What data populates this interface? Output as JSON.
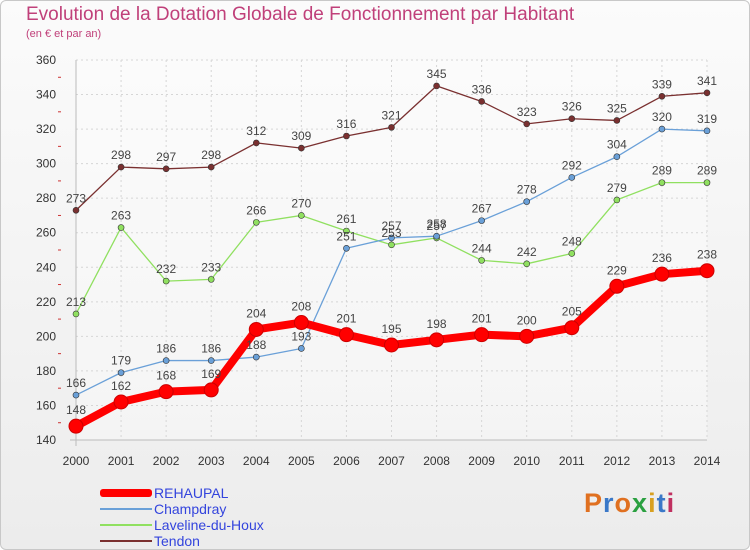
{
  "header": {
    "title": "Evolution de la Dotation Globale de Fonctionnement par Habitant",
    "subtitle": "(en € et par an)"
  },
  "logo": {
    "text": "Proxiti",
    "colors": [
      "#e07020",
      "#3a78c8",
      "#e07020",
      "#2aa040",
      "#d8a020",
      "#3a78c8",
      "#c03060"
    ]
  },
  "chart_data": {
    "type": "line",
    "x": [
      "2000",
      "2001",
      "2002",
      "2003",
      "2004",
      "2005",
      "2006",
      "2007",
      "2008",
      "2009",
      "2010",
      "2011",
      "2012",
      "2013",
      "2014"
    ],
    "ylim": [
      140,
      360
    ],
    "yticks": [
      140,
      160,
      180,
      200,
      220,
      240,
      260,
      280,
      300,
      320,
      340,
      360
    ],
    "grid": true,
    "legend_position": "bottom-left",
    "series": [
      {
        "name": "REHAUPAL",
        "color": "#ff0000",
        "emphasis": true,
        "values": [
          148,
          162,
          168,
          169,
          204,
          208,
          201,
          195,
          198,
          201,
          200,
          205,
          229,
          236,
          238
        ],
        "labels": [
          "148",
          "162",
          "168",
          "169",
          "204",
          "208",
          "201",
          "195",
          "198",
          "201",
          "200",
          "205",
          "229",
          "236",
          "238"
        ]
      },
      {
        "name": "Champdray",
        "color": "#6aa0d8",
        "values": [
          166,
          179,
          186,
          186,
          188,
          193,
          251,
          257,
          258,
          267,
          278,
          292,
          304,
          320,
          319
        ],
        "labels": [
          "166",
          "179",
          "186",
          "186",
          "188",
          "193",
          "251",
          "257",
          "258",
          "267",
          "278",
          "292",
          "304",
          "320",
          "319"
        ]
      },
      {
        "name": "Laveline-du-Houx",
        "color": "#90e060",
        "values": [
          213,
          263,
          232,
          233,
          266,
          270,
          261,
          253,
          257,
          244,
          242,
          248,
          279,
          289,
          289
        ],
        "labels": [
          "213",
          "263",
          "232",
          "233",
          "266",
          "270",
          "261",
          "253",
          "257",
          "244",
          "242",
          "248",
          "279",
          "289",
          "289"
        ]
      },
      {
        "name": "Tendon",
        "color": "#7a3030",
        "values": [
          273,
          298,
          297,
          298,
          312,
          309,
          316,
          321,
          345,
          336,
          323,
          326,
          325,
          339,
          341
        ],
        "labels": [
          "273",
          "298",
          "297",
          "298",
          "312",
          "309",
          "316",
          "321",
          "345",
          "336",
          "323",
          "326",
          "325",
          "339",
          "341"
        ]
      }
    ]
  }
}
